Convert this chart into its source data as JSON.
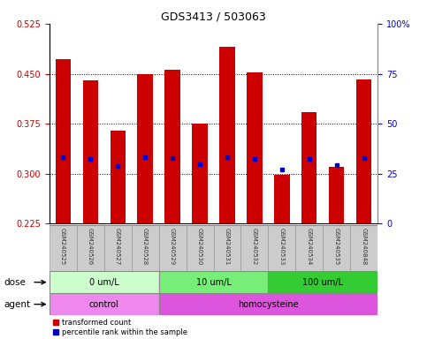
{
  "title": "GDS3413 / 503063",
  "samples": [
    "GSM240525",
    "GSM240526",
    "GSM240527",
    "GSM240528",
    "GSM240529",
    "GSM240530",
    "GSM240531",
    "GSM240532",
    "GSM240533",
    "GSM240534",
    "GSM240535",
    "GSM240848"
  ],
  "bar_values": [
    0.472,
    0.44,
    0.365,
    0.45,
    0.456,
    0.375,
    0.49,
    0.452,
    0.298,
    0.392,
    0.31,
    0.442
  ],
  "percentile_values": [
    0.325,
    0.322,
    0.312,
    0.325,
    0.323,
    0.314,
    0.325,
    0.322,
    0.306,
    0.322,
    0.313,
    0.323
  ],
  "bar_bottom": 0.225,
  "ylim_left": [
    0.225,
    0.525
  ],
  "yticks_left": [
    0.225,
    0.3,
    0.375,
    0.45,
    0.525
  ],
  "yticks_right": [
    0,
    25,
    50,
    75,
    100
  ],
  "ylim_right": [
    0,
    100
  ],
  "bar_color": "#cc0000",
  "percentile_color": "#0000cc",
  "bar_width": 0.55,
  "dose_groups": [
    {
      "label": "0 um/L",
      "start": 0,
      "end": 4,
      "color": "#ccffcc"
    },
    {
      "label": "10 um/L",
      "start": 4,
      "end": 8,
      "color": "#77ee77"
    },
    {
      "label": "100 um/L",
      "start": 8,
      "end": 12,
      "color": "#33cc33"
    }
  ],
  "agent_groups": [
    {
      "label": "control",
      "start": 0,
      "end": 4,
      "color": "#ee88ee"
    },
    {
      "label": "homocysteine",
      "start": 4,
      "end": 12,
      "color": "#dd55dd"
    }
  ],
  "dose_label": "dose",
  "agent_label": "agent",
  "legend_bar_label": "transformed count",
  "legend_pct_label": "percentile rank within the sample",
  "title_fontsize": 9,
  "axis_label_color_left": "#cc0000",
  "axis_label_color_right": "#0000cc",
  "bg_color": "#ffffff",
  "plot_bg": "#ffffff",
  "tick_area_bg": "#cccccc"
}
